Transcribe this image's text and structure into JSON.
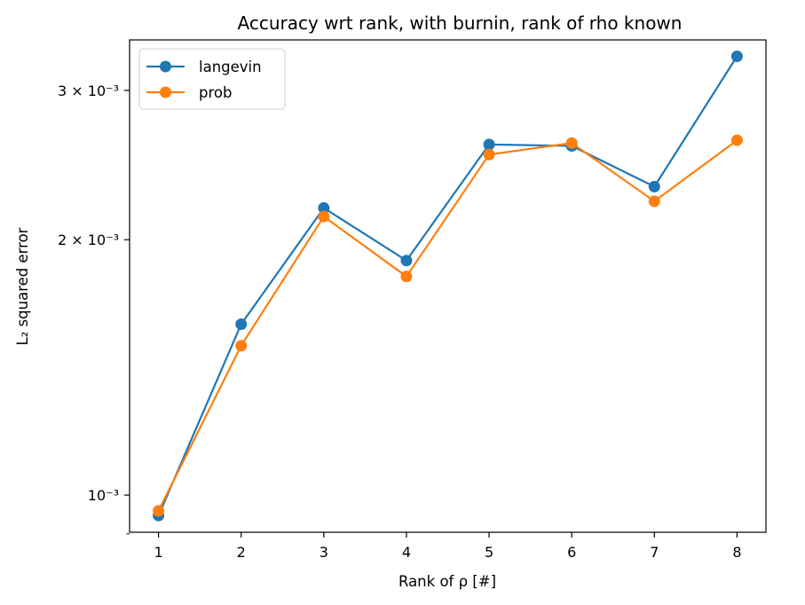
{
  "chart_data": {
    "type": "line",
    "title": "Accuracy wrt rank, with burnin, rank of rho known",
    "xlabel": "Rank of ρ [#]",
    "ylabel": "L₂ squared error",
    "x": [
      1,
      2,
      3,
      4,
      5,
      6,
      7,
      8
    ],
    "xlim": [
      0.65,
      8.35
    ],
    "ylim": [
      0.000904,
      0.00344
    ],
    "yscale": "log",
    "y_major_ticks": [
      {
        "value": 0.001,
        "label": "10⁻³"
      },
      {
        "value": 0.002,
        "label": "2 × 10⁻³"
      },
      {
        "value": 0.003,
        "label": "3 × 10⁻³"
      }
    ],
    "y_minor_ticks": [
      0.0009
    ],
    "x_ticks": [
      1,
      2,
      3,
      4,
      5,
      6,
      7,
      8
    ],
    "grid": false,
    "legend_position": "top-left",
    "series": [
      {
        "name": "langevin",
        "color": "#1f77b4",
        "values": [
          0.000946,
          0.00159,
          0.00218,
          0.00189,
          0.00259,
          0.00258,
          0.00231,
          0.00329
        ]
      },
      {
        "name": "prob",
        "color": "#ff7f0e",
        "values": [
          0.000958,
          0.0015,
          0.00213,
          0.00181,
          0.00252,
          0.0026,
          0.00222,
          0.00262
        ]
      }
    ]
  }
}
